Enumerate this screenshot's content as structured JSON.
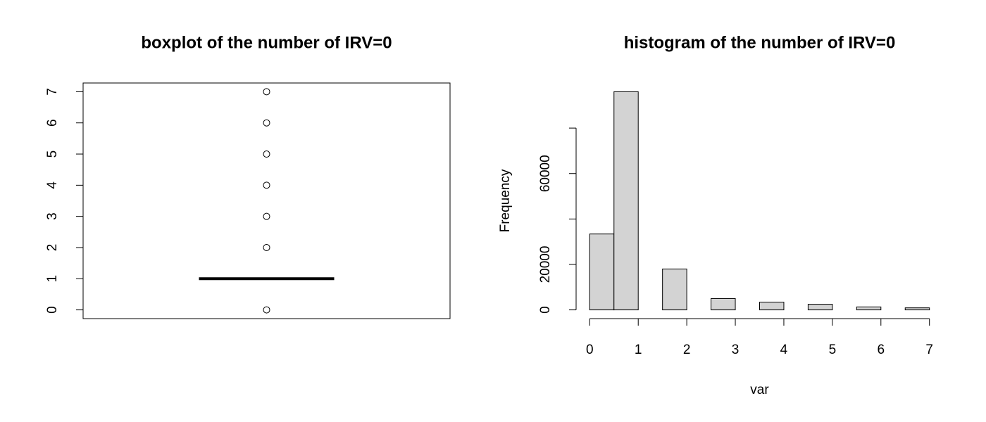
{
  "chart_data": [
    {
      "type": "box",
      "title": "boxplot of the number of IRV=0",
      "q1": 1,
      "median": 1,
      "q3": 1,
      "whisker_low": 1,
      "whisker_high": 1,
      "outliers": [
        0,
        2,
        3,
        4,
        5,
        6,
        7
      ],
      "ylim": [
        -0.28,
        7.28
      ],
      "yticks": [
        0,
        1,
        2,
        3,
        4,
        5,
        6,
        7
      ]
    },
    {
      "type": "histogram",
      "title": "histogram of the number of IRV=0",
      "xlabel": "var",
      "ylabel": "Frequency",
      "bins": [
        0,
        0.5,
        1,
        1.5,
        2,
        2.5,
        3,
        3.5,
        4,
        4.5,
        5,
        5.5,
        6,
        6.5,
        7
      ],
      "values": [
        33400,
        96000,
        0,
        18000,
        0,
        5000,
        0,
        3400,
        0,
        2500,
        0,
        1300,
        0,
        900
      ],
      "color": "#d3d3d3",
      "xlim": [
        -0.28,
        7.28
      ],
      "ylim": [
        -3840,
        99840
      ],
      "xticks": [
        0,
        1,
        2,
        3,
        4,
        5,
        6,
        7
      ],
      "yticks": [
        0,
        20000,
        {
          "value": 40000,
          "label": null
        },
        60000,
        {
          "value": 80000,
          "label": null
        }
      ]
    }
  ]
}
